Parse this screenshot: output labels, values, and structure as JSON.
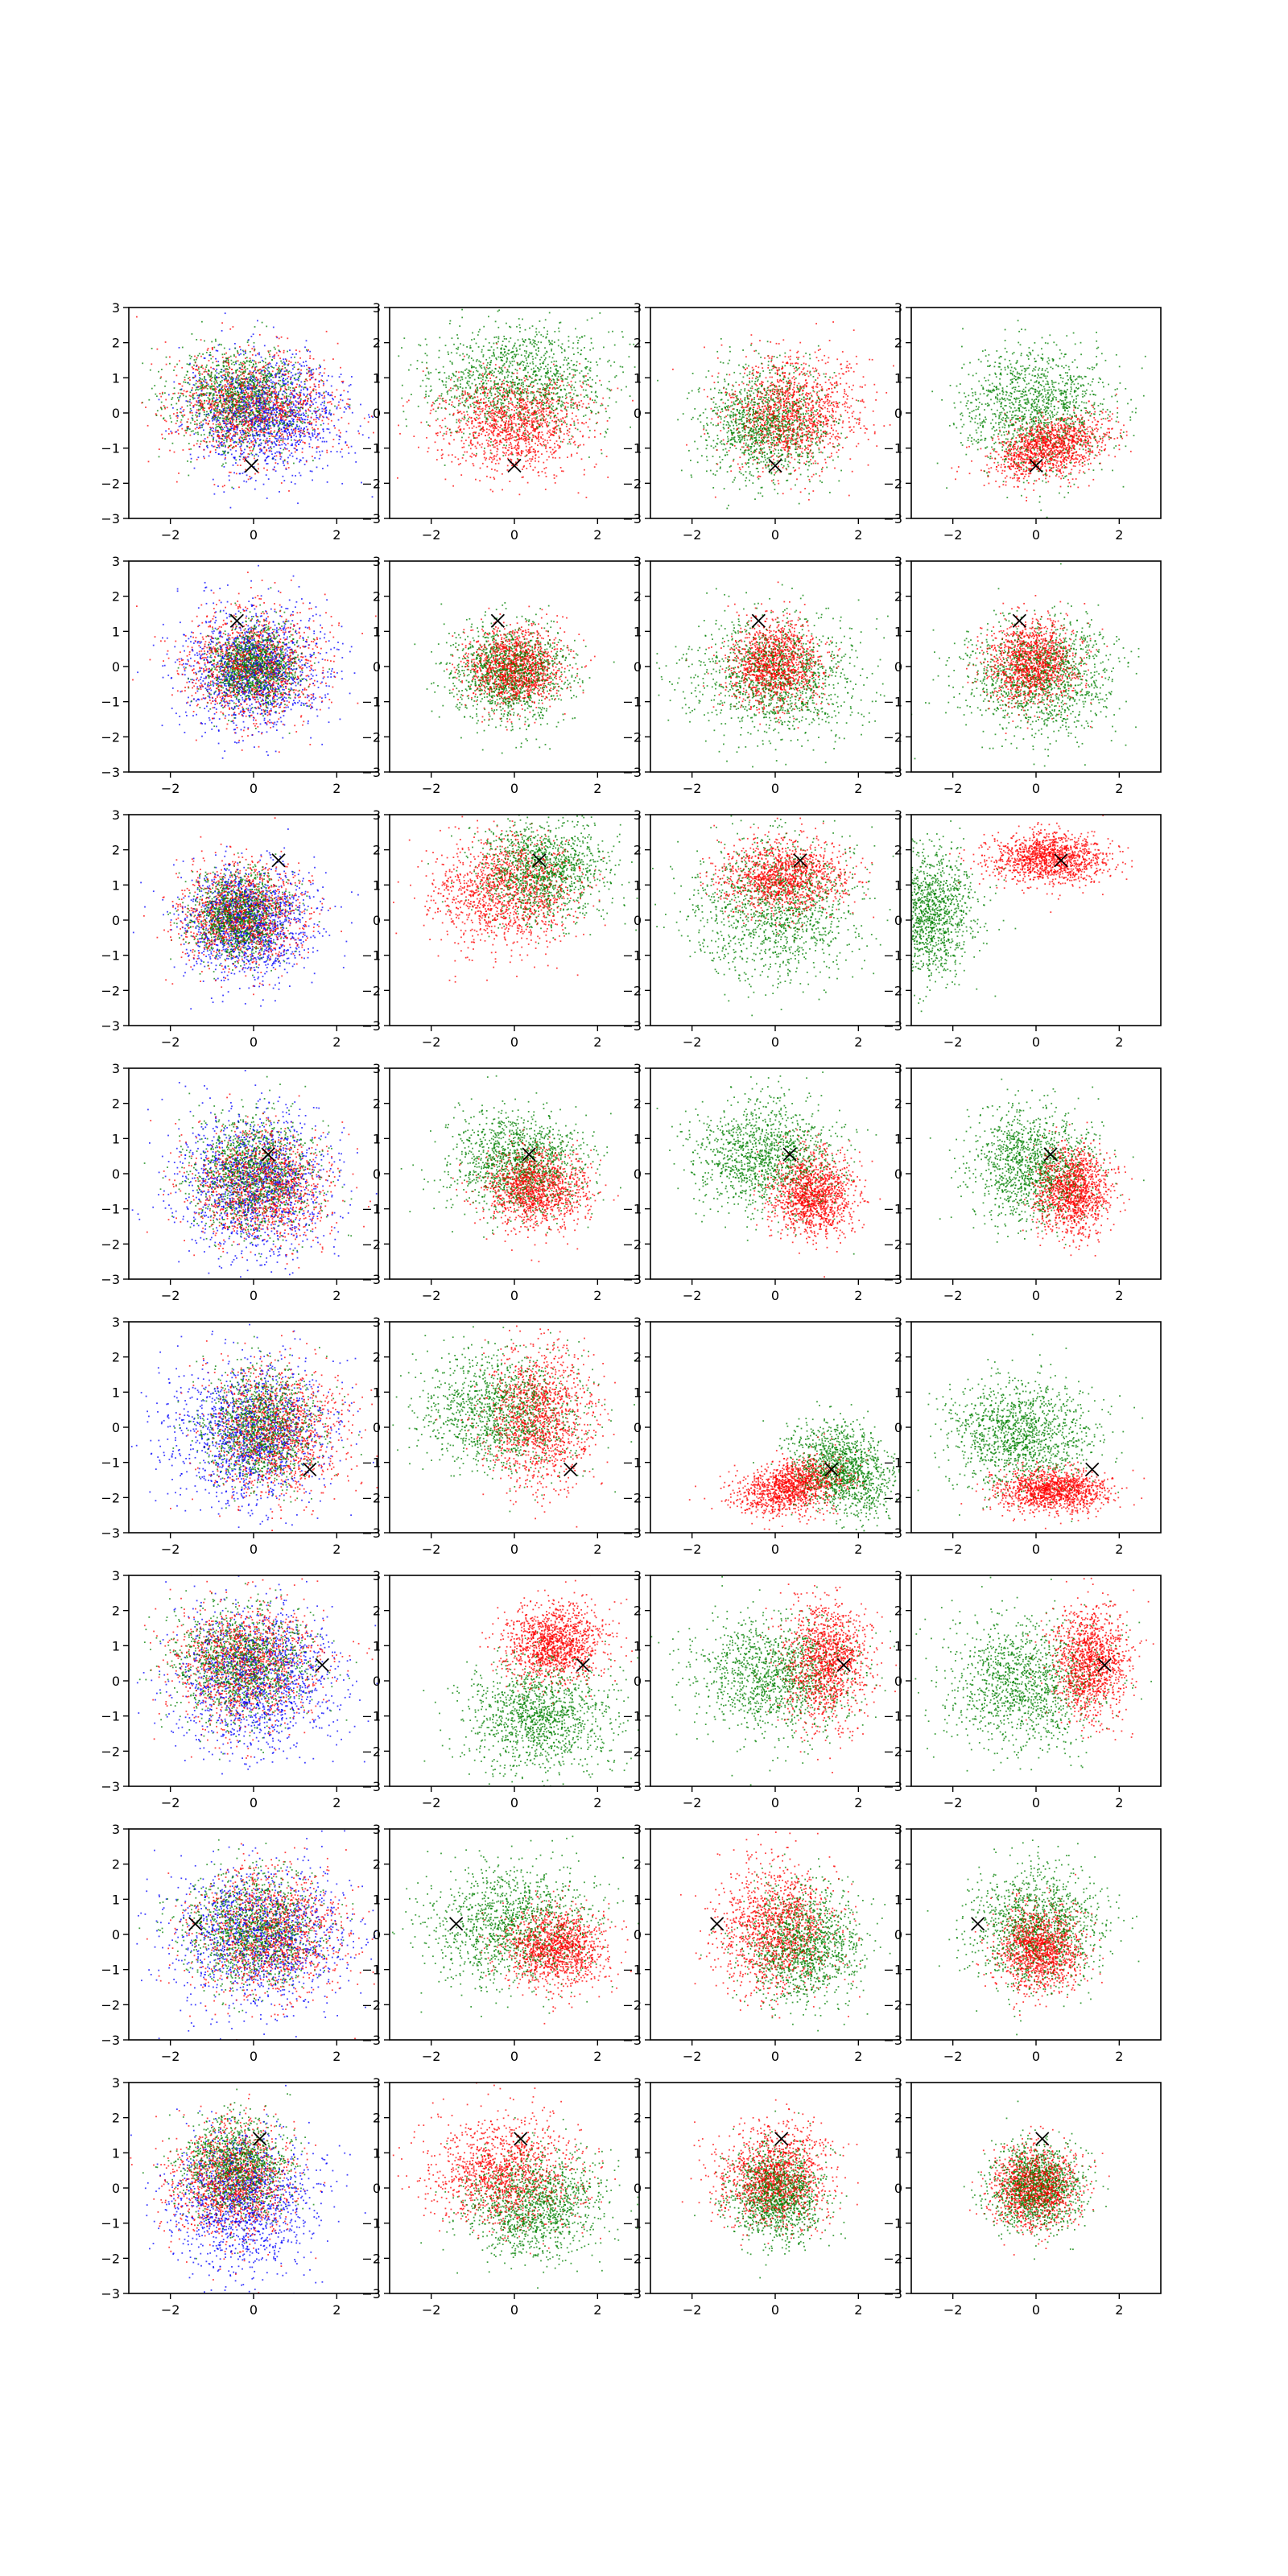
{
  "figure": {
    "rows": 8,
    "cols": 4,
    "background": "#ffffff",
    "marker_color": "#000000",
    "series_colors": {
      "red": "#ff0000",
      "green": "#008000",
      "blue": "#0000ff"
    }
  },
  "chart_data": {
    "type": "scatter",
    "grid": false,
    "xlim": [
      -3,
      3
    ],
    "ylim": [
      -3,
      3
    ],
    "xticks": [
      -2,
      0,
      2
    ],
    "yticks": [
      -3,
      -2,
      -1,
      0,
      1,
      2,
      3
    ],
    "xtick_labels": [
      "−2",
      "0",
      "2"
    ],
    "ytick_labels": [
      "−3",
      "−2",
      "−1",
      "0",
      "1",
      "2",
      "3"
    ],
    "panels": [
      {
        "row": 0,
        "col": 0,
        "marker": [
          -0.05,
          -1.5
        ],
        "clusters": [
          {
            "color": "red",
            "cx": 0,
            "cy": 0.2,
            "sx": 0.95,
            "sy": 0.8,
            "rot": 0
          },
          {
            "color": "green",
            "cx": -0.3,
            "cy": 0.4,
            "sx": 0.8,
            "sy": 0.7,
            "rot": 0
          },
          {
            "color": "blue",
            "cx": 0.3,
            "cy": 0,
            "sx": 0.95,
            "sy": 0.85,
            "rot": 0
          }
        ]
      },
      {
        "row": 0,
        "col": 1,
        "marker": [
          0,
          -1.5
        ],
        "clusters": [
          {
            "color": "green",
            "cx": 0.1,
            "cy": 0.9,
            "sx": 1.1,
            "sy": 0.8,
            "rot": 0
          },
          {
            "color": "red",
            "cx": 0,
            "cy": -0.3,
            "sx": 0.9,
            "sy": 0.7,
            "rot": 0
          }
        ]
      },
      {
        "row": 0,
        "col": 2,
        "marker": [
          0,
          -1.5
        ],
        "clusters": [
          {
            "color": "red",
            "cx": 0.4,
            "cy": 0,
            "sx": 0.8,
            "sy": 0.8,
            "rot": 0
          },
          {
            "color": "green",
            "cx": -0.2,
            "cy": -0.3,
            "sx": 0.75,
            "sy": 0.8,
            "rot": 0
          }
        ]
      },
      {
        "row": 0,
        "col": 3,
        "marker": [
          0,
          -1.5
        ],
        "clusters": [
          {
            "color": "green",
            "cx": 0,
            "cy": 0.1,
            "sx": 0.9,
            "sy": 0.9,
            "rot": 0
          },
          {
            "color": "red",
            "cx": 0.3,
            "cy": -1,
            "sx": 0.7,
            "sy": 0.4,
            "rot": 0.35
          }
        ]
      },
      {
        "row": 1,
        "col": 0,
        "marker": [
          -0.4,
          1.3
        ],
        "clusters": [
          {
            "color": "red",
            "cx": 0,
            "cy": 0,
            "sx": 0.8,
            "sy": 0.8,
            "rot": 0
          },
          {
            "color": "blue",
            "cx": 0,
            "cy": -0.1,
            "sx": 0.85,
            "sy": 0.85,
            "rot": 0
          },
          {
            "color": "green",
            "cx": 0,
            "cy": 0,
            "sx": 0.55,
            "sy": 0.55,
            "rot": 0
          }
        ]
      },
      {
        "row": 1,
        "col": 1,
        "marker": [
          -0.4,
          1.3
        ],
        "clusters": [
          {
            "color": "red",
            "cx": 0,
            "cy": 0,
            "sx": 0.55,
            "sy": 0.55,
            "rot": 0
          },
          {
            "color": "green",
            "cx": -0.1,
            "cy": -0.2,
            "sx": 0.7,
            "sy": 0.7,
            "rot": 0
          }
        ]
      },
      {
        "row": 1,
        "col": 2,
        "marker": [
          -0.4,
          1.3
        ],
        "clusters": [
          {
            "color": "green",
            "cx": 0,
            "cy": -0.3,
            "sx": 1,
            "sy": 0.85,
            "rot": 0
          },
          {
            "color": "red",
            "cx": 0,
            "cy": 0.1,
            "sx": 0.55,
            "sy": 0.6,
            "rot": 0
          }
        ]
      },
      {
        "row": 1,
        "col": 3,
        "marker": [
          -0.4,
          1.3
        ],
        "clusters": [
          {
            "color": "green",
            "cx": 0.1,
            "cy": -0.3,
            "sx": 0.95,
            "sy": 0.8,
            "rot": 0
          },
          {
            "color": "red",
            "cx": -0.1,
            "cy": 0.1,
            "sx": 0.55,
            "sy": 0.6,
            "rot": 0
          }
        ]
      },
      {
        "row": 2,
        "col": 0,
        "marker": [
          0.6,
          1.7
        ],
        "clusters": [
          {
            "color": "red",
            "cx": -0.3,
            "cy": 0.2,
            "sx": 0.75,
            "sy": 0.75,
            "rot": 0
          },
          {
            "color": "blue",
            "cx": -0.1,
            "cy": -0.1,
            "sx": 0.8,
            "sy": 0.8,
            "rot": 0
          },
          {
            "color": "green",
            "cx": -0.4,
            "cy": 0.1,
            "sx": 0.55,
            "sy": 0.6,
            "rot": 0
          }
        ]
      },
      {
        "row": 2,
        "col": 1,
        "marker": [
          0.6,
          1.7
        ],
        "clusters": [
          {
            "color": "green",
            "cx": 0.7,
            "cy": 1.4,
            "sx": 0.8,
            "sy": 0.7,
            "rot": 0
          },
          {
            "color": "red",
            "cx": -0.2,
            "cy": 0.8,
            "sx": 0.85,
            "sy": 0.8,
            "rot": 0
          }
        ]
      },
      {
        "row": 2,
        "col": 2,
        "marker": [
          0.6,
          1.7
        ],
        "clusters": [
          {
            "color": "green",
            "cx": 0,
            "cy": 0.3,
            "sx": 1,
            "sy": 1,
            "rot": 0
          },
          {
            "color": "red",
            "cx": 0.2,
            "cy": 1.2,
            "sx": 0.75,
            "sy": 0.5,
            "rot": 0
          }
        ]
      },
      {
        "row": 2,
        "col": 3,
        "marker": [
          0.6,
          1.7
        ],
        "clusters": [
          {
            "color": "green",
            "cx": -2.6,
            "cy": 0.2,
            "sx": 0.55,
            "sy": 0.9,
            "rot": 0
          },
          {
            "color": "red",
            "cx": 0.3,
            "cy": 1.75,
            "sx": 0.7,
            "sy": 0.35,
            "rot": 0
          }
        ]
      },
      {
        "row": 3,
        "col": 0,
        "marker": [
          0.35,
          0.55
        ],
        "clusters": [
          {
            "color": "red",
            "cx": 0.2,
            "cy": -0.3,
            "sx": 0.85,
            "sy": 0.8,
            "rot": 0
          },
          {
            "color": "blue",
            "cx": 0,
            "cy": -0.3,
            "sx": 0.9,
            "sy": 1,
            "rot": 0
          },
          {
            "color": "green",
            "cx": 0,
            "cy": 0,
            "sx": 0.75,
            "sy": 0.85,
            "rot": 0
          }
        ]
      },
      {
        "row": 3,
        "col": 1,
        "marker": [
          0.35,
          0.55
        ],
        "clusters": [
          {
            "color": "green",
            "cx": 0.1,
            "cy": 0.3,
            "sx": 0.8,
            "sy": 0.7,
            "rot": 0
          },
          {
            "color": "red",
            "cx": 0.5,
            "cy": -0.4,
            "sx": 0.6,
            "sy": 0.55,
            "rot": 0
          }
        ]
      },
      {
        "row": 3,
        "col": 2,
        "marker": [
          0.35,
          0.55
        ],
        "clusters": [
          {
            "color": "green",
            "cx": -0.2,
            "cy": 0.5,
            "sx": 0.85,
            "sy": 0.8,
            "rot": 0
          },
          {
            "color": "red",
            "cx": 0.9,
            "cy": -0.6,
            "sx": 0.5,
            "sy": 0.6,
            "rot": 0
          }
        ]
      },
      {
        "row": 3,
        "col": 3,
        "marker": [
          0.35,
          0.55
        ],
        "clusters": [
          {
            "color": "green",
            "cx": -0.1,
            "cy": 0.2,
            "sx": 0.75,
            "sy": 0.8,
            "rot": 0
          },
          {
            "color": "red",
            "cx": 0.9,
            "cy": -0.5,
            "sx": 0.45,
            "sy": 0.6,
            "rot": 0
          }
        ]
      },
      {
        "row": 4,
        "col": 0,
        "marker": [
          1.35,
          -1.2
        ],
        "clusters": [
          {
            "color": "blue",
            "cx": -0.1,
            "cy": -0.2,
            "sx": 0.95,
            "sy": 1,
            "rot": 0
          },
          {
            "color": "red",
            "cx": 0.5,
            "cy": -0.1,
            "sx": 0.8,
            "sy": 0.9,
            "rot": 0
          },
          {
            "color": "green",
            "cx": 0.2,
            "cy": 0,
            "sx": 0.7,
            "sy": 0.8,
            "rot": 0
          }
        ]
      },
      {
        "row": 4,
        "col": 1,
        "marker": [
          1.35,
          -1.2
        ],
        "clusters": [
          {
            "color": "green",
            "cx": -0.3,
            "cy": 0.4,
            "sx": 0.95,
            "sy": 0.85,
            "rot": 0
          },
          {
            "color": "red",
            "cx": 0.6,
            "cy": 0.3,
            "sx": 0.65,
            "sy": 1,
            "rot": 0
          }
        ]
      },
      {
        "row": 4,
        "col": 2,
        "marker": [
          1.35,
          -1.2
        ],
        "clusters": [
          {
            "color": "green",
            "cx": 1.6,
            "cy": -1.2,
            "sx": 0.55,
            "sy": 0.7,
            "rot": 0.6
          },
          {
            "color": "red",
            "cx": 0.4,
            "cy": -1.7,
            "sx": 0.65,
            "sy": 0.35,
            "rot": 0.3
          }
        ]
      },
      {
        "row": 4,
        "col": 3,
        "marker": [
          1.35,
          -1.2
        ],
        "clusters": [
          {
            "color": "green",
            "cx": -0.4,
            "cy": -0.2,
            "sx": 0.85,
            "sy": 0.75,
            "rot": 0
          },
          {
            "color": "red",
            "cx": 0.4,
            "cy": -1.8,
            "sx": 0.65,
            "sy": 0.3,
            "rot": 0
          }
        ]
      },
      {
        "row": 5,
        "col": 0,
        "marker": [
          1.65,
          0.45
        ],
        "clusters": [
          {
            "color": "blue",
            "cx": 0.1,
            "cy": 0,
            "sx": 1,
            "sy": 1.05,
            "rot": 0
          },
          {
            "color": "red",
            "cx": -0.2,
            "cy": 0.5,
            "sx": 0.85,
            "sy": 0.85,
            "rot": 0
          },
          {
            "color": "green",
            "cx": -0.3,
            "cy": 0.5,
            "sx": 0.8,
            "sy": 0.8,
            "rot": 0
          }
        ]
      },
      {
        "row": 5,
        "col": 1,
        "marker": [
          1.65,
          0.45
        ],
        "clusters": [
          {
            "color": "red",
            "cx": 1,
            "cy": 1.1,
            "sx": 0.6,
            "sy": 0.55,
            "rot": 0.3
          },
          {
            "color": "green",
            "cx": 0.6,
            "cy": -1,
            "sx": 0.85,
            "sy": 0.8,
            "rot": 0
          }
        ]
      },
      {
        "row": 5,
        "col": 2,
        "marker": [
          1.65,
          0.45
        ],
        "clusters": [
          {
            "color": "green",
            "cx": 0,
            "cy": 0.2,
            "sx": 0.95,
            "sy": 0.85,
            "rot": 0
          },
          {
            "color": "red",
            "cx": 1.2,
            "cy": 0.5,
            "sx": 0.5,
            "sy": 0.85,
            "rot": 0
          }
        ]
      },
      {
        "row": 5,
        "col": 3,
        "marker": [
          1.65,
          0.45
        ],
        "clusters": [
          {
            "color": "green",
            "cx": -0.3,
            "cy": -0.1,
            "sx": 0.95,
            "sy": 0.9,
            "rot": 0
          },
          {
            "color": "red",
            "cx": 1.3,
            "cy": 0.5,
            "sx": 0.45,
            "sy": 0.75,
            "rot": 0
          }
        ]
      },
      {
        "row": 6,
        "col": 0,
        "marker": [
          -1.4,
          0.3
        ],
        "clusters": [
          {
            "color": "blue",
            "cx": 0.2,
            "cy": 0,
            "sx": 1.05,
            "sy": 1,
            "rot": 0
          },
          {
            "color": "red",
            "cx": 0.4,
            "cy": 0,
            "sx": 0.9,
            "sy": 0.9,
            "rot": 0
          },
          {
            "color": "green",
            "cx": 0,
            "cy": 0.1,
            "sx": 0.8,
            "sy": 0.8,
            "rot": 0
          }
        ]
      },
      {
        "row": 6,
        "col": 1,
        "marker": [
          -1.4,
          0.3
        ],
        "clusters": [
          {
            "color": "green",
            "cx": -0.1,
            "cy": 0.3,
            "sx": 1,
            "sy": 0.85,
            "rot": 0
          },
          {
            "color": "red",
            "cx": 1,
            "cy": -0.4,
            "sx": 0.6,
            "sy": 0.55,
            "rot": 0
          }
        ]
      },
      {
        "row": 6,
        "col": 2,
        "marker": [
          -1.4,
          0.3
        ],
        "clusters": [
          {
            "color": "red",
            "cx": 0,
            "cy": 0.2,
            "sx": 0.7,
            "sy": 0.9,
            "rot": 0
          },
          {
            "color": "green",
            "cx": 0.7,
            "cy": -0.3,
            "sx": 0.7,
            "sy": 0.8,
            "rot": 0
          }
        ]
      },
      {
        "row": 6,
        "col": 3,
        "marker": [
          -1.4,
          0.3
        ],
        "clusters": [
          {
            "color": "green",
            "cx": 0,
            "cy": 0.2,
            "sx": 0.75,
            "sy": 0.85,
            "rot": 0
          },
          {
            "color": "red",
            "cx": 0.1,
            "cy": -0.4,
            "sx": 0.5,
            "sy": 0.6,
            "rot": 0
          }
        ]
      },
      {
        "row": 7,
        "col": 0,
        "marker": [
          0.15,
          1.4
        ],
        "clusters": [
          {
            "color": "blue",
            "cx": -0.2,
            "cy": -0.4,
            "sx": 0.85,
            "sy": 0.95,
            "rot": 0
          },
          {
            "color": "red",
            "cx": -0.5,
            "cy": 0.2,
            "sx": 0.7,
            "sy": 0.8,
            "rot": 0
          },
          {
            "color": "green",
            "cx": -0.4,
            "cy": 0.6,
            "sx": 0.6,
            "sy": 0.7,
            "rot": 0
          }
        ]
      },
      {
        "row": 7,
        "col": 1,
        "marker": [
          0.15,
          1.4
        ],
        "clusters": [
          {
            "color": "red",
            "cx": -0.3,
            "cy": 0.4,
            "sx": 0.9,
            "sy": 0.8,
            "rot": 0
          },
          {
            "color": "green",
            "cx": 0.5,
            "cy": -0.5,
            "sx": 0.8,
            "sy": 0.75,
            "rot": 0
          }
        ]
      },
      {
        "row": 7,
        "col": 2,
        "marker": [
          0.15,
          1.4
        ],
        "clusters": [
          {
            "color": "red",
            "cx": 0,
            "cy": 0.3,
            "sx": 0.65,
            "sy": 0.7,
            "rot": 0
          },
          {
            "color": "green",
            "cx": 0,
            "cy": -0.2,
            "sx": 0.55,
            "sy": 0.65,
            "rot": 0
          }
        ]
      },
      {
        "row": 7,
        "col": 3,
        "marker": [
          0.15,
          1.4
        ],
        "clusters": [
          {
            "color": "red",
            "cx": 0,
            "cy": 0,
            "sx": 0.5,
            "sy": 0.55,
            "rot": 0
          },
          {
            "color": "green",
            "cx": 0,
            "cy": 0,
            "sx": 0.55,
            "sy": 0.6,
            "rot": 0
          }
        ]
      }
    ]
  }
}
